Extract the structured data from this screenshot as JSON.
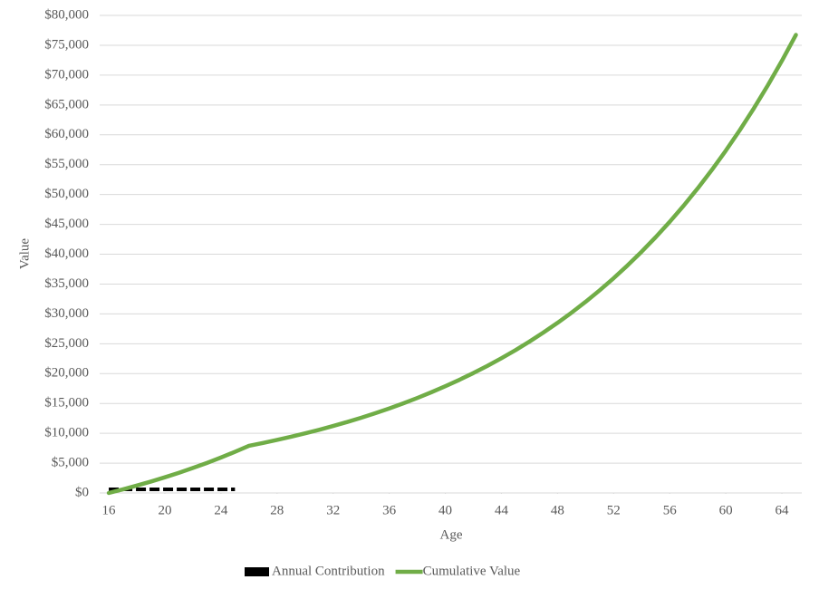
{
  "chart_data": {
    "type": "line",
    "xlabel": "Age",
    "ylabel": "Value",
    "x": [
      16,
      17,
      18,
      19,
      20,
      21,
      22,
      23,
      24,
      25,
      26,
      27,
      28,
      29,
      30,
      31,
      32,
      33,
      34,
      35,
      36,
      37,
      38,
      39,
      40,
      41,
      42,
      43,
      44,
      45,
      46,
      47,
      48,
      49,
      50,
      51,
      52,
      53,
      54,
      55,
      56,
      57,
      58,
      59,
      60,
      61,
      62,
      63,
      64,
      65
    ],
    "series": [
      {
        "name": "Annual Contribution",
        "color": "#000000",
        "dashed": true,
        "values": [
          600,
          600,
          600,
          600,
          600,
          600,
          600,
          600,
          600,
          600,
          null,
          null,
          null,
          null,
          null,
          null,
          null,
          null,
          null,
          null,
          null,
          null,
          null,
          null,
          null,
          null,
          null,
          null,
          null,
          null,
          null,
          null,
          null,
          null,
          null,
          null,
          null,
          null,
          null,
          null,
          null,
          null,
          null,
          null,
          null,
          null,
          null,
          null,
          null,
          null
        ]
      },
      {
        "name": "Cumulative Value",
        "color": "#70ad47",
        "dashed": false,
        "values": [
          0,
          600,
          1236,
          1910,
          2625,
          3382,
          4185,
          5036,
          5938,
          6895,
          7908,
          8382,
          8885,
          9418,
          9983,
          10582,
          11217,
          11890,
          12603,
          13360,
          14161,
          15011,
          15912,
          16866,
          17878,
          18951,
          20088,
          21293,
          22571,
          23925,
          25361,
          26882,
          28495,
          30205,
          32017,
          33938,
          35975,
          38133,
          40421,
          42846,
          45417,
          48142,
          51031,
          54093,
          57338,
          60779,
          64425,
          68291,
          72388,
          76732
        ]
      }
    ],
    "xlim": [
      15.35,
      65.42
    ],
    "xticks": [
      16,
      20,
      24,
      28,
      32,
      36,
      40,
      44,
      48,
      52,
      56,
      60,
      64
    ],
    "ylim": [
      0,
      80000
    ],
    "yticks": [
      {
        "value": 0,
        "label": "$0"
      },
      {
        "value": 5000,
        "label": "$5,000"
      },
      {
        "value": 10000,
        "label": "$10,000"
      },
      {
        "value": 15000,
        "label": "$15,000"
      },
      {
        "value": 20000,
        "label": "$20,000"
      },
      {
        "value": 25000,
        "label": "$25,000"
      },
      {
        "value": 30000,
        "label": "$30,000"
      },
      {
        "value": 35000,
        "label": "$35,000"
      },
      {
        "value": 40000,
        "label": "$40,000"
      },
      {
        "value": 45000,
        "label": "$45,000"
      },
      {
        "value": 50000,
        "label": "$50,000"
      },
      {
        "value": 55000,
        "label": "$55,000"
      },
      {
        "value": 60000,
        "label": "$60,000"
      },
      {
        "value": 65000,
        "label": "$65,000"
      },
      {
        "value": 70000,
        "label": "$70,000"
      },
      {
        "value": 75000,
        "label": "$75,000"
      },
      {
        "value": 80000,
        "label": "$80,000"
      }
    ],
    "grid": true,
    "legend": "bottom"
  }
}
